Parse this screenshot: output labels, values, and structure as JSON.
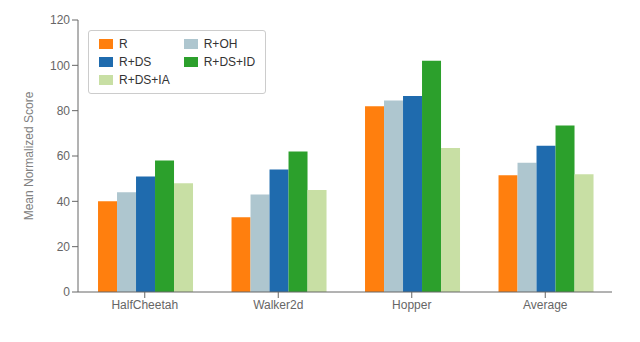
{
  "chart_data": {
    "type": "bar",
    "categories": [
      "HalfCheetah",
      "Walker2d",
      "Hopper",
      "Average"
    ],
    "series": [
      {
        "name": "R",
        "color": "#FF7F0E",
        "values": [
          40,
          33,
          82,
          51.5
        ]
      },
      {
        "name": "R+OH",
        "color": "#AEC6CF",
        "values": [
          44,
          43,
          84.5,
          57
        ]
      },
      {
        "name": "R+DS",
        "color": "#1F6BAE",
        "values": [
          51,
          54,
          86.5,
          64.5
        ]
      },
      {
        "name": "R+DS+ID",
        "color": "#2CA02C",
        "values": [
          58,
          62,
          102,
          73.5
        ]
      },
      {
        "name": "R+DS+IA",
        "color": "#C8DFA4",
        "values": [
          48,
          45,
          63.5,
          52
        ]
      }
    ],
    "ylabel": "Mean Normalized Score",
    "ylim": [
      0,
      120
    ],
    "yticks": [
      0,
      20,
      40,
      60,
      80,
      100,
      120
    ],
    "grid": false,
    "legend": "upper left"
  }
}
